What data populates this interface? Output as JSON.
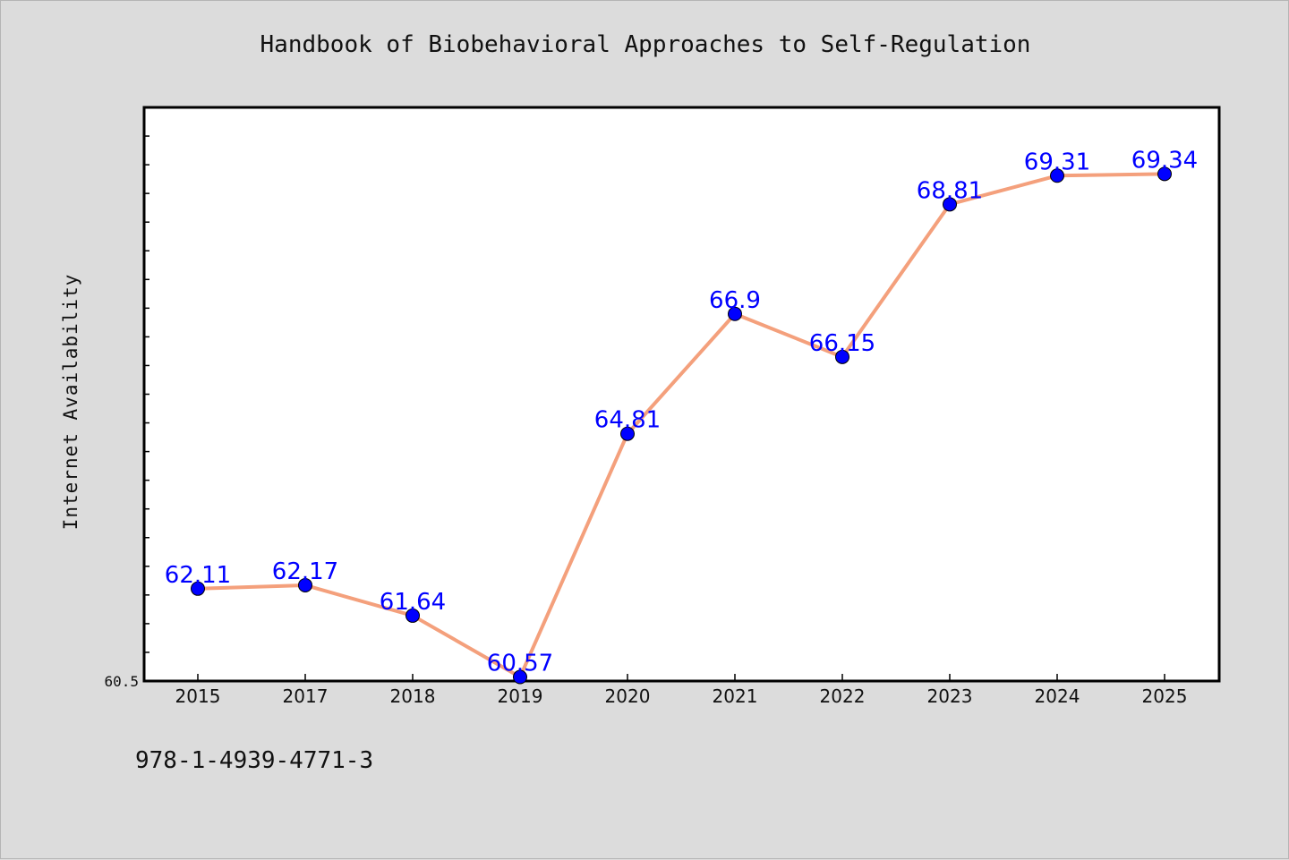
{
  "title": "Handbook of Biobehavioral Approaches to Self-Regulation",
  "footer_text": "978-1-4939-4771-3",
  "chart_data": {
    "type": "line",
    "title": "Handbook of Biobehavioral Approaches to Self-Regulation",
    "xlabel": "",
    "ylabel": "Internet Availability",
    "categories": [
      "2015",
      "2017",
      "2018",
      "2019",
      "2020",
      "2021",
      "2022",
      "2023",
      "2024",
      "2025"
    ],
    "series": [
      {
        "values": [
          62.11,
          62.17,
          61.64,
          60.57,
          64.81,
          66.9,
          66.15,
          68.81,
          69.31,
          69.34
        ],
        "data_labels": [
          "62.11",
          "62.17",
          "61.64",
          "60.57",
          "64.81",
          "66.9",
          "66.15",
          "68.81",
          "69.31",
          "69.34"
        ]
      }
    ],
    "y_tick_labels": [
      "60.5"
    ],
    "ylim": [
      60.5,
      70.5
    ],
    "grid": false,
    "colors": {
      "line": "#f4a07c",
      "marker": "#0000ff",
      "label": "#0000ff",
      "plot_bg": "#ffffff",
      "figure_bg": "#dcdcdc"
    }
  }
}
